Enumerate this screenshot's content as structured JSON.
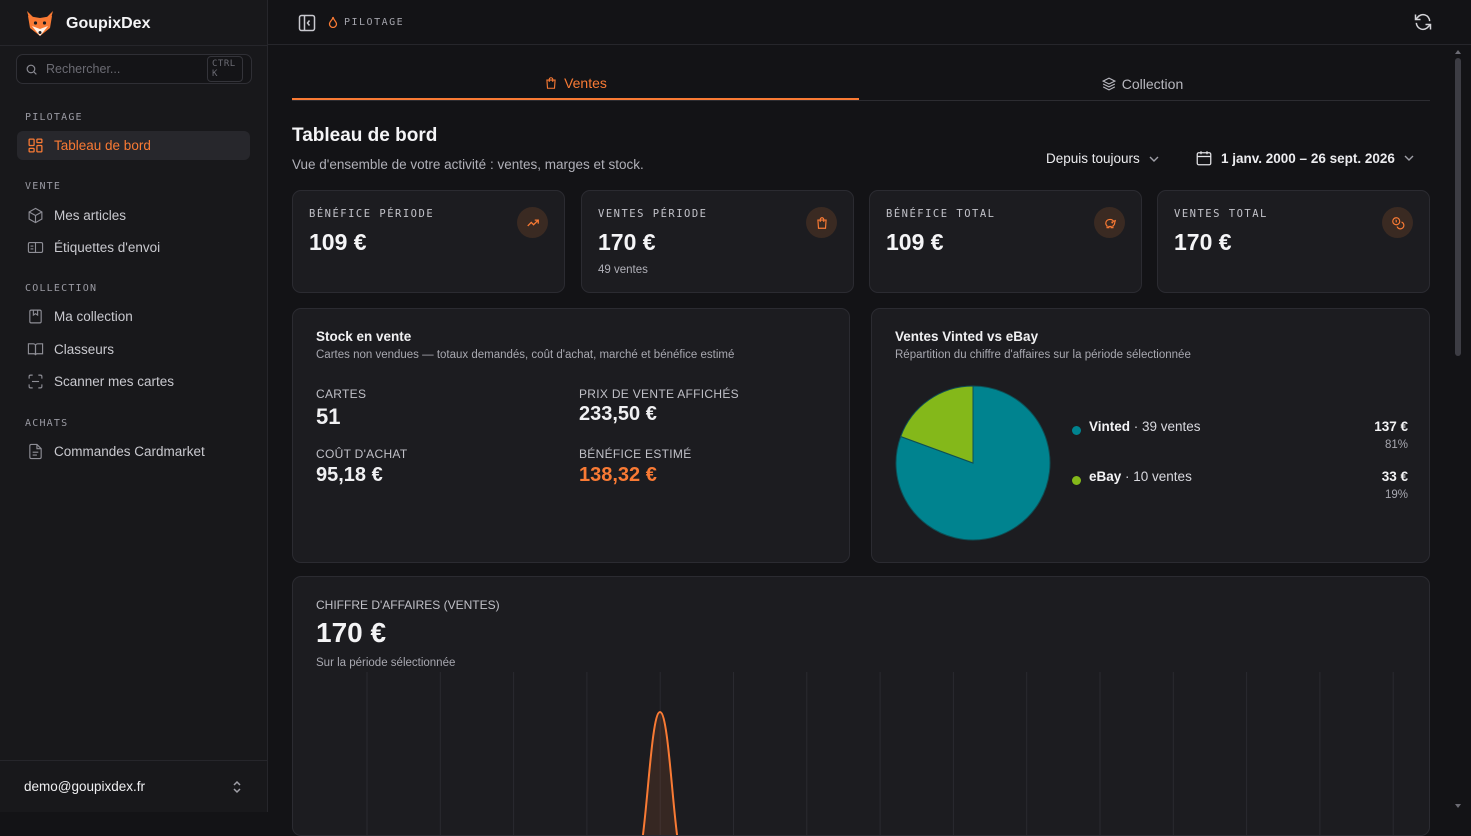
{
  "app": {
    "name": "GoupixDex"
  },
  "search": {
    "placeholder": "Rechercher...",
    "shortcut": "CTRL K"
  },
  "sidebar": {
    "sections": [
      {
        "title": "PILOTAGE",
        "items": [
          {
            "label": "Tableau de bord",
            "icon": "dashboard-grid-icon",
            "active": true
          }
        ]
      },
      {
        "title": "VENTE",
        "items": [
          {
            "label": "Mes articles",
            "icon": "package-icon"
          },
          {
            "label": "Étiquettes d'envoi",
            "icon": "shipping-label-icon"
          }
        ]
      },
      {
        "title": "COLLECTION",
        "items": [
          {
            "label": "Ma collection",
            "icon": "bookmark-icon"
          },
          {
            "label": "Classeurs",
            "icon": "book-open-icon"
          },
          {
            "label": "Scanner mes cartes",
            "icon": "scan-icon"
          }
        ]
      },
      {
        "title": "ACHATS",
        "items": [
          {
            "label": "Commandes Cardmarket",
            "icon": "file-text-icon"
          }
        ]
      }
    ],
    "user_email": "demo@goupixdex.fr"
  },
  "topbar": {
    "breadcrumb": "PILOTAGE"
  },
  "tabs": [
    {
      "label": "Ventes",
      "active": true
    },
    {
      "label": "Collection",
      "active": false
    }
  ],
  "header": {
    "title": "Tableau de bord",
    "subtitle": "Vue d'ensemble de votre activité : ventes, marges et stock.",
    "period": "Depuis toujours",
    "date_range": "1 janv. 2000 – 26 sept. 2026"
  },
  "kpis": [
    {
      "label": "BÉNÉFICE PÉRIODE",
      "value": "109 €",
      "sub": "",
      "icon": "trending-up-icon"
    },
    {
      "label": "VENTES PÉRIODE",
      "value": "170 €",
      "sub": "49 ventes",
      "icon": "shopping-bag-icon"
    },
    {
      "label": "BÉNÉFICE TOTAL",
      "value": "109 €",
      "sub": "",
      "icon": "piggy-bank-icon"
    },
    {
      "label": "VENTES TOTAL",
      "value": "170 €",
      "sub": "",
      "icon": "coins-icon"
    }
  ],
  "stock": {
    "title": "Stock en vente",
    "subtitle": "Cartes non vendues — totaux demandés, coût d'achat, marché et bénéfice estimé",
    "cards_label": "CARTES",
    "cards_value": "51",
    "price_label": "PRIX DE VENTE AFFICHÉS",
    "price_value": "233,50 €",
    "cost_label": "COÛT D'ACHAT",
    "cost_value": "95,18 €",
    "profit_label": "BÉNÉFICE ESTIMÉ",
    "profit_value": "138,32 €"
  },
  "platforms": {
    "title": "Ventes Vinted vs eBay",
    "subtitle": "Répartition du chiffre d'affaires sur la période sélectionnée",
    "items": [
      {
        "name": "Vinted",
        "count": " · 39 ventes",
        "value": "137 €",
        "pct": "81%",
        "share": 81,
        "color": "#00838f"
      },
      {
        "name": "eBay",
        "count": " · 10 ventes",
        "value": "33 €",
        "pct": "19%",
        "share": 19,
        "color": "#84b81a"
      }
    ]
  },
  "revenue": {
    "label": "CHIFFRE D'AFFAIRES (VENTES)",
    "value": "170 €",
    "caption": "Sur la période sélectionnée",
    "line_color": "#f97a34"
  },
  "chart_data": [
    {
      "type": "pie",
      "categories": [
        "Vinted",
        "eBay"
      ],
      "values": [
        137,
        33
      ],
      "colors": [
        "#00838f",
        "#84b81a"
      ],
      "title": "Ventes Vinted vs eBay"
    }
  ]
}
